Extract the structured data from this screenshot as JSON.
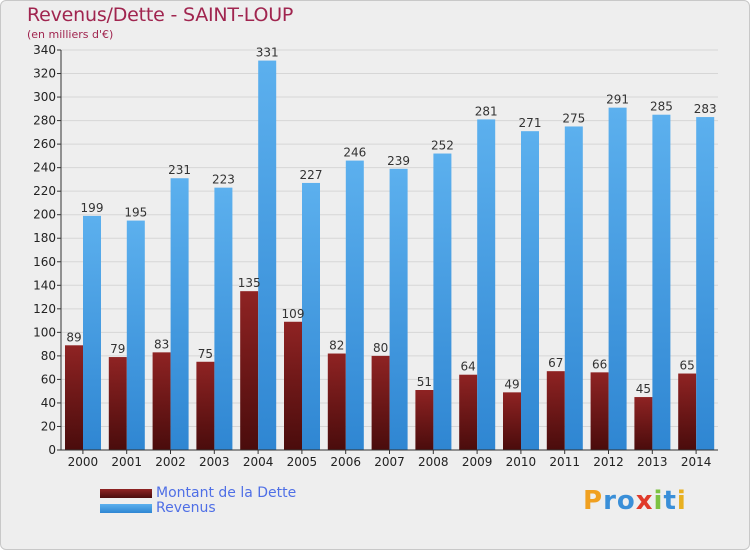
{
  "title": "Revenus/Dette - SAINT-LOUP",
  "subtitle": "(en milliers d'€)",
  "colors": {
    "title": "#a0254f",
    "dette": "#7a1a1a",
    "revenus": "#4aa3e6",
    "legend_text": "#4f6fe6",
    "background": "#eeeeee"
  },
  "legend": [
    {
      "label": "Montant de la Dette",
      "color": "#6e1414"
    },
    {
      "label": "Revenus",
      "color": "#3f97dd"
    }
  ],
  "logo": {
    "letters": [
      "P",
      "r",
      "o",
      "x",
      "i",
      "t",
      "i"
    ]
  },
  "chart_data": {
    "type": "bar",
    "categories": [
      "2000",
      "2001",
      "2002",
      "2003",
      "2004",
      "2005",
      "2006",
      "2007",
      "2008",
      "2009",
      "2010",
      "2011",
      "2012",
      "2013",
      "2014"
    ],
    "series": [
      {
        "name": "Montant de la Dette",
        "values": [
          89,
          79,
          83,
          75,
          135,
          109,
          82,
          80,
          51,
          64,
          49,
          67,
          66,
          45,
          65
        ]
      },
      {
        "name": "Revenus",
        "values": [
          199,
          195,
          231,
          223,
          331,
          227,
          246,
          239,
          252,
          281,
          271,
          275,
          291,
          285,
          283
        ]
      }
    ],
    "ylim": [
      0,
      340
    ],
    "yticks": [
      0,
      20,
      40,
      60,
      80,
      100,
      120,
      140,
      160,
      180,
      200,
      220,
      240,
      260,
      280,
      300,
      320,
      340
    ],
    "grid": true,
    "legend_position": "bottom-left",
    "data_labels": true
  }
}
